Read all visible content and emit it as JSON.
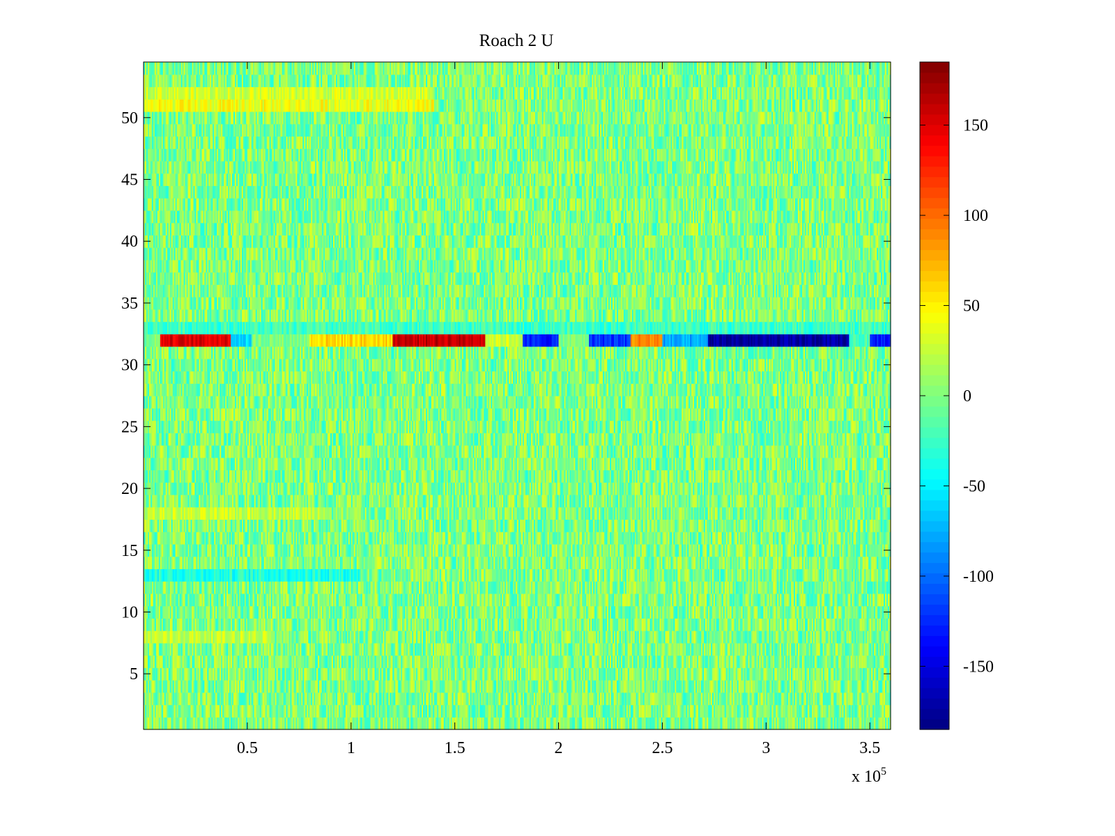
{
  "chart_data": {
    "type": "heatmap",
    "title": "Roach 2 U",
    "xlabel": "",
    "ylabel": "",
    "xlim": [
      0,
      360000
    ],
    "ylim": [
      0.5,
      54.5
    ],
    "rows": 54,
    "x_tick_values": [
      50000,
      100000,
      150000,
      200000,
      250000,
      300000,
      350000
    ],
    "x_tick_labels": [
      "0.5",
      "1",
      "1.5",
      "2",
      "2.5",
      "3",
      "3.5"
    ],
    "x_exponent_label": "x 10",
    "x_exponent_power": "5",
    "y_tick_values": [
      5,
      10,
      15,
      20,
      25,
      30,
      35,
      40,
      45,
      50
    ],
    "y_tick_labels": [
      "5",
      "10",
      "15",
      "20",
      "25",
      "30",
      "35",
      "40",
      "45",
      "50"
    ],
    "colormap": "jet",
    "clim": [
      -185,
      185
    ],
    "colorbar_tick_values": [
      -150,
      -100,
      -50,
      0,
      50,
      100,
      150
    ],
    "colorbar_tick_labels": [
      "-150",
      "-100",
      "-50",
      "0",
      "50",
      "100",
      "150"
    ],
    "background_value_range": [
      -45,
      45
    ],
    "row_bias": [
      {
        "row": 51,
        "x_range": [
          0,
          140000
        ],
        "mean": 40
      },
      {
        "row": 52,
        "x_range": [
          0,
          140000
        ],
        "mean": 30
      },
      {
        "row": 33,
        "x_range": [
          0,
          360000
        ],
        "mean": -25
      },
      {
        "row": 13,
        "x_range": [
          0,
          105000
        ],
        "mean": -35
      },
      {
        "row": 18,
        "x_range": [
          0,
          90000
        ],
        "mean": 25
      },
      {
        "row": 8,
        "x_range": [
          0,
          60000
        ],
        "mean": 25
      }
    ],
    "highlight_row": {
      "row": 32,
      "segments": [
        {
          "x_range": [
            0,
            8000
          ],
          "mean": 0
        },
        {
          "x_range": [
            8000,
            42000
          ],
          "mean": 150
        },
        {
          "x_range": [
            42000,
            52000
          ],
          "mean": -60
        },
        {
          "x_range": [
            52000,
            80000
          ],
          "mean": 0
        },
        {
          "x_range": [
            80000,
            120000
          ],
          "mean": 60
        },
        {
          "x_range": [
            120000,
            165000
          ],
          "mean": 160
        },
        {
          "x_range": [
            165000,
            183000
          ],
          "mean": 30
        },
        {
          "x_range": [
            183000,
            200000
          ],
          "mean": -130
        },
        {
          "x_range": [
            200000,
            215000
          ],
          "mean": 0
        },
        {
          "x_range": [
            215000,
            235000
          ],
          "mean": -120
        },
        {
          "x_range": [
            235000,
            250000
          ],
          "mean": 90
        },
        {
          "x_range": [
            250000,
            272000
          ],
          "mean": -80
        },
        {
          "x_range": [
            272000,
            340000
          ],
          "mean": -175
        },
        {
          "x_range": [
            340000,
            350000
          ],
          "mean": -20
        },
        {
          "x_range": [
            350000,
            360000
          ],
          "mean": -130
        }
      ]
    }
  }
}
